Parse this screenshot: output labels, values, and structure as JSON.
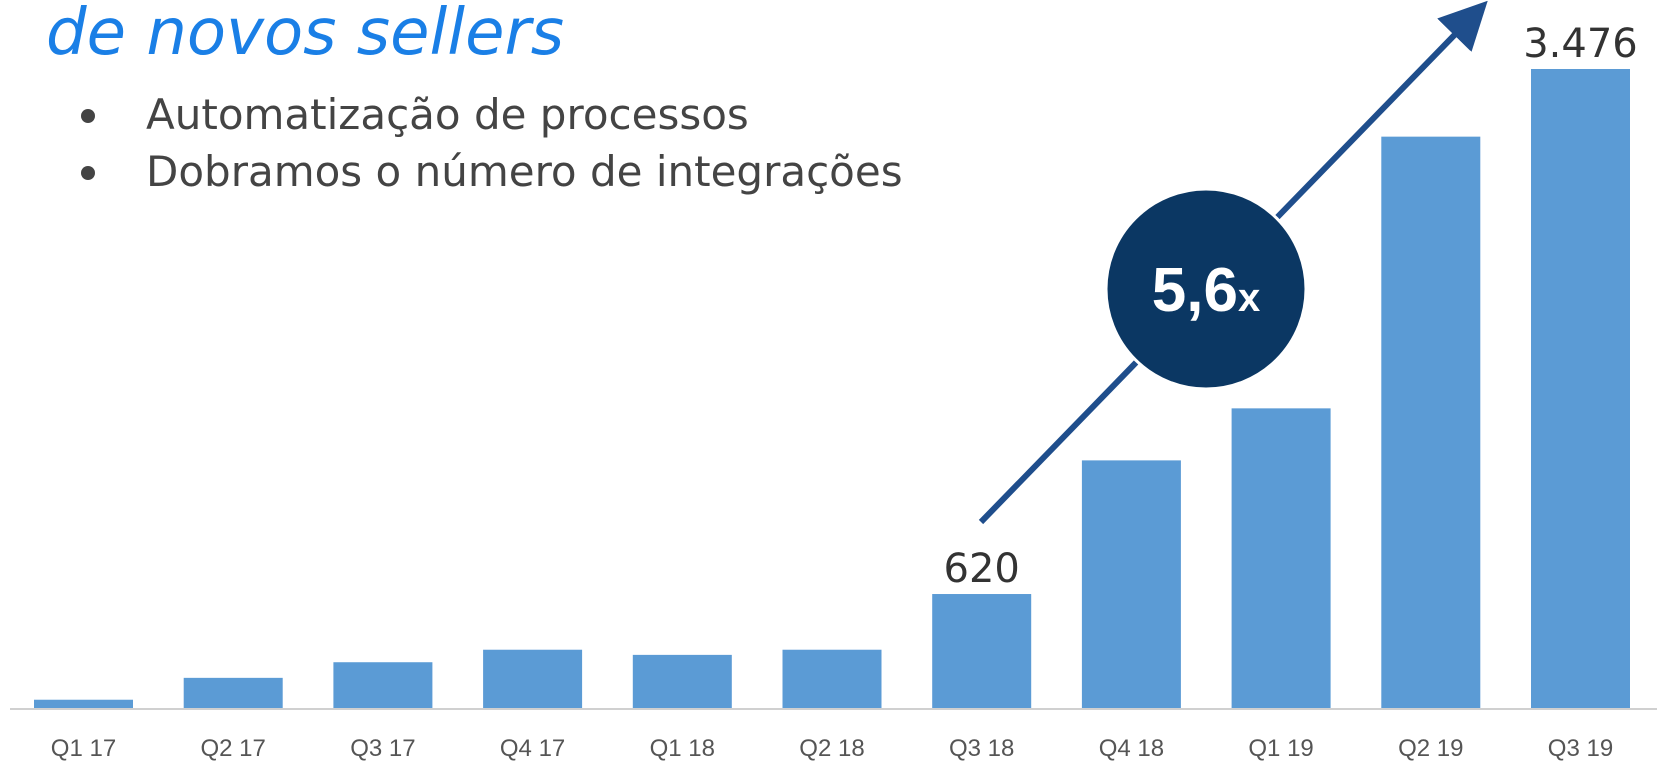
{
  "chart_data": {
    "type": "bar",
    "title": "de novos sellers",
    "bullets": [
      "Automatização de processos",
      "Dobramos o número de integrações"
    ],
    "annotation": {
      "main": "5,6",
      "suffix": "x"
    },
    "categories": [
      "Q1 17",
      "Q2 17",
      "Q3 17",
      "Q4 17",
      "Q1 18",
      "Q2 18",
      "Q3 18",
      "Q4 18",
      "Q1 19",
      "Q2 19",
      "Q3 19"
    ],
    "values": [
      45,
      164,
      249,
      317,
      289,
      317,
      620,
      1347,
      1630,
      3108,
      3476
    ],
    "value_labels": [
      null,
      null,
      null,
      null,
      null,
      null,
      "620",
      null,
      null,
      null,
      "3.476"
    ],
    "color": "#5b9bd5"
  }
}
